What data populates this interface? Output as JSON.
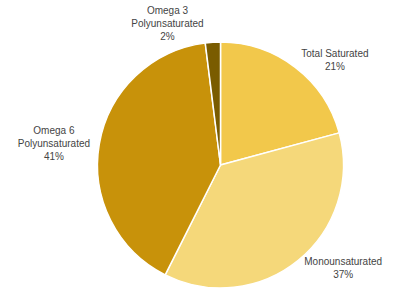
{
  "chart_data": {
    "type": "pie",
    "categories": [
      "Total Saturated",
      "Monounsaturated",
      "Omega 6\nPolyunsaturated",
      "Omega 3\nPolyunsaturated"
    ],
    "values": [
      21,
      37,
      41,
      2
    ],
    "value_labels": [
      "21%",
      "37%",
      "41%",
      "2%"
    ],
    "colors": [
      "#F2C84B",
      "#F5D87A",
      "#C8920A",
      "#7A5C00"
    ]
  }
}
